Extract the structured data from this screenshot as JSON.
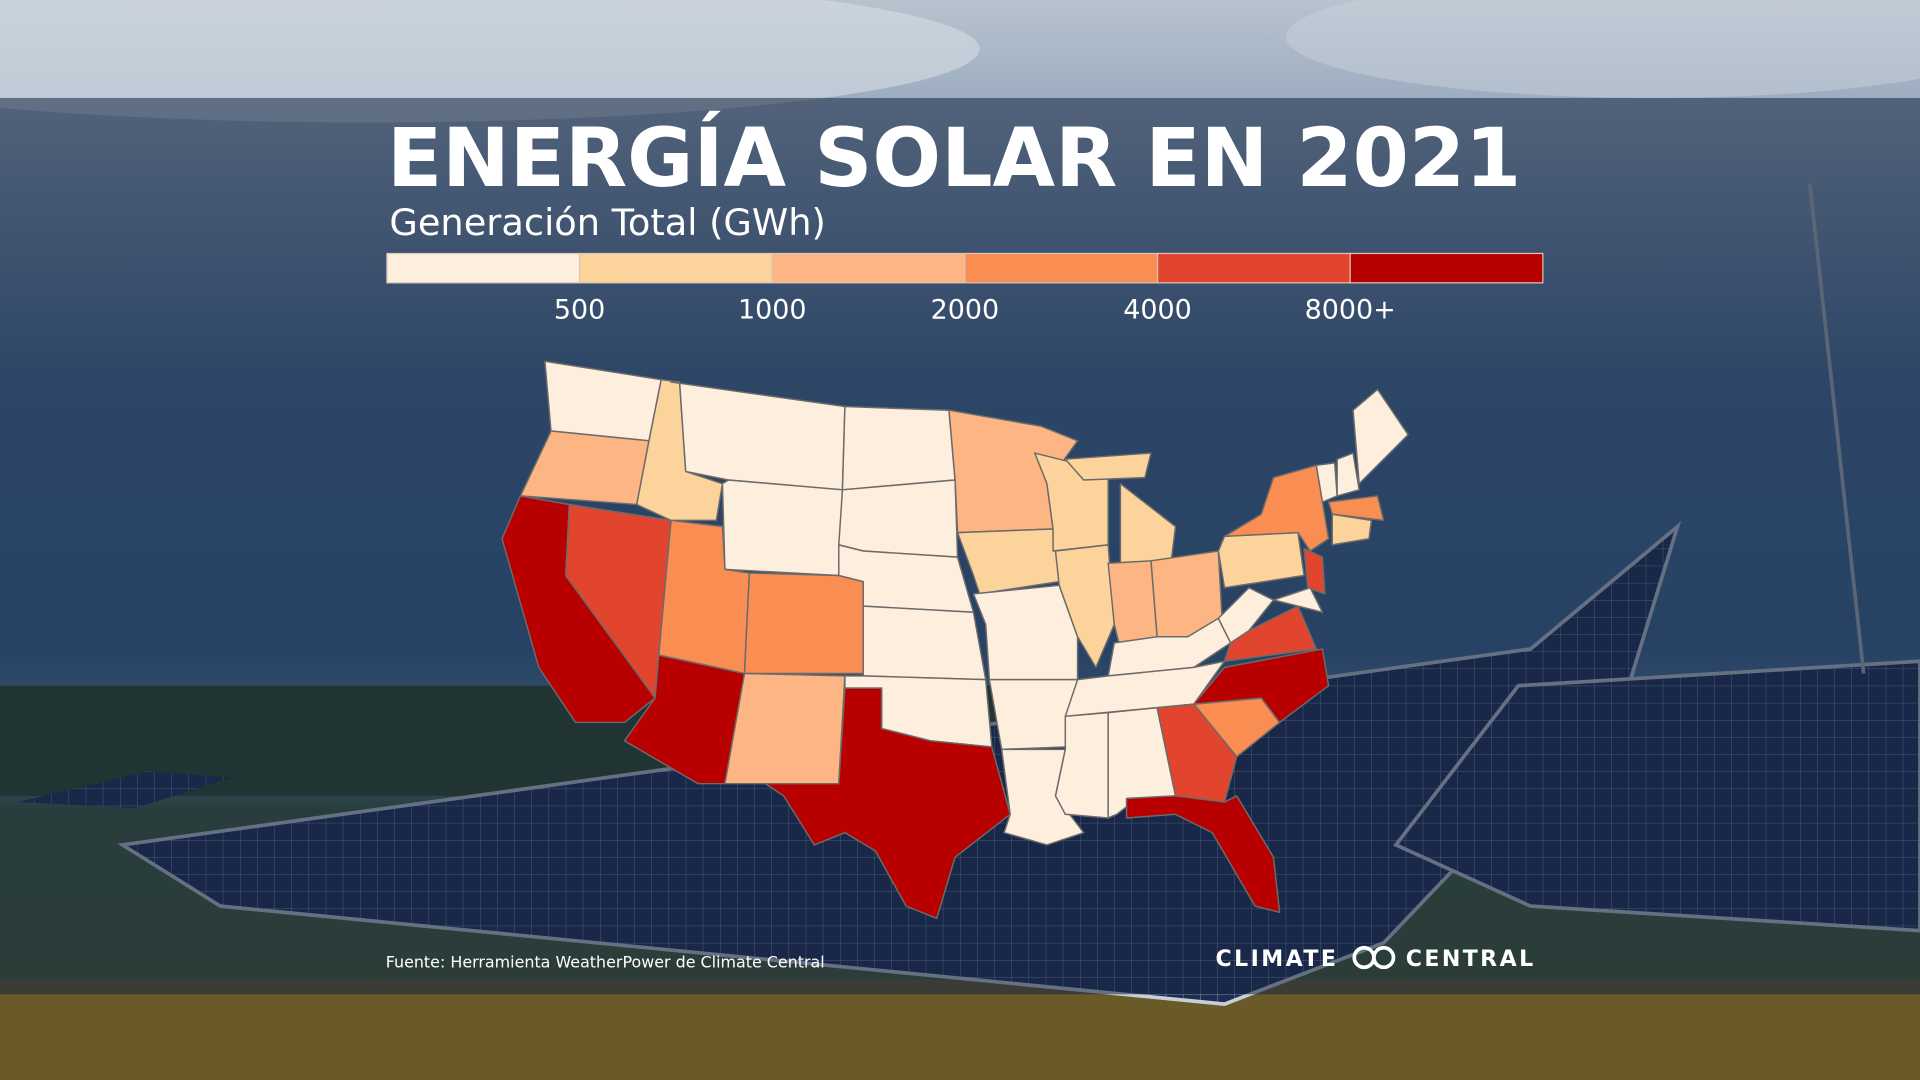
{
  "header": {
    "title": "ENERGÍA SOLAR EN 2021",
    "subtitle": "Generación Total (GWh)"
  },
  "legend": {
    "colors": [
      "#fdeedd",
      "#fdd39c",
      "#fcb583",
      "#f98d52",
      "#e2452e",
      "#b80000"
    ],
    "labels": [
      "500",
      "1000",
      "2000",
      "4000",
      "8000+"
    ]
  },
  "footer": {
    "source": "Fuente: Herramienta WeatherPower de Climate Central",
    "logo": [
      "CLIMATE",
      "CENTRAL"
    ]
  }
}
